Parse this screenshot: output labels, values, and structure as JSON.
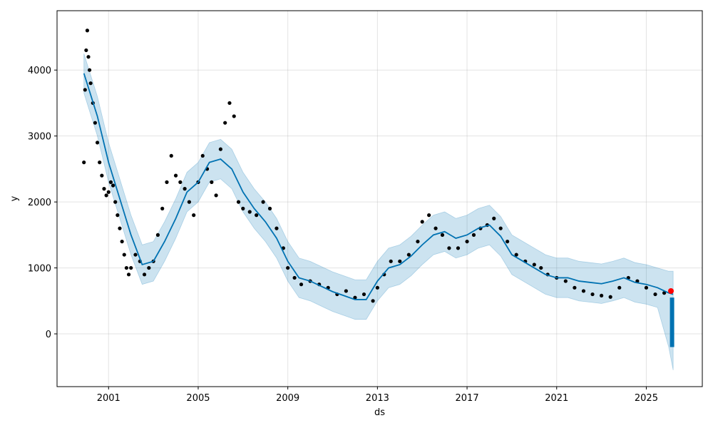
{
  "chart_data": {
    "type": "line",
    "xlabel": "ds",
    "ylabel": "y",
    "xlim": [
      1998.7,
      2027.5
    ],
    "ylim": [
      -800,
      4900
    ],
    "x_ticks": [
      2001,
      2005,
      2009,
      2013,
      2017,
      2021,
      2025
    ],
    "x_tick_labels": [
      "2001",
      "2005",
      "2009",
      "2013",
      "2017",
      "2021",
      "2025"
    ],
    "y_ticks": [
      0,
      1000,
      2000,
      3000,
      4000
    ],
    "y_tick_labels": [
      "0",
      "1000",
      "2000",
      "3000",
      "4000"
    ],
    "grid": true,
    "colors": {
      "observed": "#000000",
      "forecast": "#0072B2",
      "interval": "#0072B2",
      "recent": "#ff0000"
    },
    "series": [
      {
        "kind": "observed",
        "x": [
          1999.9,
          1999.95,
          2000.0,
          2000.05,
          2000.1,
          2000.15,
          2000.2,
          2000.3,
          2000.4,
          2000.5,
          2000.6,
          2000.7,
          2000.8,
          2000.9,
          2001.0,
          2001.1,
          2001.2,
          2001.3,
          2001.4,
          2001.5,
          2001.6,
          2001.7,
          2001.8,
          2001.9,
          2002.0,
          2002.2,
          2002.4,
          2002.6,
          2002.8,
          2003.0,
          2003.2,
          2003.4,
          2003.6,
          2003.8,
          2004.0,
          2004.2,
          2004.4,
          2004.6,
          2004.8,
          2005.0,
          2005.2,
          2005.4,
          2005.6,
          2005.8,
          2006.0,
          2006.2,
          2006.4,
          2006.6,
          2006.8,
          2007.0,
          2007.3,
          2007.6,
          2007.9,
          2008.2,
          2008.5,
          2008.8,
          2009.0,
          2009.3,
          2009.6,
          2010.0,
          2010.4,
          2010.8,
          2011.2,
          2011.6,
          2012.0,
          2012.4,
          2012.8,
          2013.0,
          2013.3,
          2013.6,
          2014.0,
          2014.4,
          2014.8,
          2015.0,
          2015.3,
          2015.6,
          2015.9,
          2016.2,
          2016.6,
          2017.0,
          2017.3,
          2017.6,
          2017.9,
          2018.2,
          2018.5,
          2018.8,
          2019.2,
          2019.6,
          2020.0,
          2020.3,
          2020.6,
          2021.0,
          2021.4,
          2021.8,
          2022.2,
          2022.6,
          2023.0,
          2023.4,
          2023.8,
          2024.2,
          2024.6,
          2025.0,
          2025.4,
          2025.8,
          2026.1
        ],
        "y": [
          2600,
          3700,
          4300,
          4600,
          4200,
          4000,
          3800,
          3500,
          3200,
          2900,
          2600,
          2400,
          2200,
          2100,
          2150,
          2300,
          2250,
          2000,
          1800,
          1600,
          1400,
          1200,
          1000,
          900,
          1000,
          1200,
          1100,
          900,
          1000,
          1100,
          1500,
          1900,
          2300,
          2700,
          2400,
          2300,
          2200,
          2000,
          1800,
          2300,
          2700,
          2500,
          2300,
          2100,
          2800,
          3200,
          3500,
          3300,
          2000,
          1900,
          1850,
          1800,
          2000,
          1900,
          1600,
          1300,
          1000,
          850,
          750,
          800,
          750,
          700,
          600,
          650,
          550,
          600,
          500,
          700,
          900,
          1100,
          1100,
          1200,
          1400,
          1700,
          1800,
          1600,
          1500,
          1300,
          1300,
          1400,
          1500,
          1600,
          1650,
          1750,
          1600,
          1400,
          1200,
          1100,
          1050,
          1000,
          900,
          850,
          800,
          700,
          650,
          600,
          580,
          560,
          700,
          850,
          800,
          700,
          600,
          620,
          650
        ]
      },
      {
        "kind": "forecast",
        "x": [
          1999.9,
          2000.5,
          2001.0,
          2001.5,
          2002.0,
          2002.5,
          2003.0,
          2003.5,
          2004.0,
          2004.5,
          2005.0,
          2005.5,
          2006.0,
          2006.5,
          2007.0,
          2007.5,
          2008.0,
          2008.5,
          2009.0,
          2009.5,
          2010.0,
          2010.5,
          2011.0,
          2011.5,
          2012.0,
          2012.5,
          2013.0,
          2013.5,
          2014.0,
          2014.5,
          2015.0,
          2015.5,
          2016.0,
          2016.5,
          2017.0,
          2017.5,
          2018.0,
          2018.5,
          2019.0,
          2019.5,
          2020.0,
          2020.5,
          2021.0,
          2021.5,
          2022.0,
          2022.5,
          2023.0,
          2023.5,
          2024.0,
          2024.5,
          2025.0,
          2025.5,
          2026.0,
          2026.2
        ],
        "y": [
          3950,
          3300,
          2600,
          2050,
          1500,
          1050,
          1100,
          1400,
          1750,
          2150,
          2300,
          2600,
          2650,
          2500,
          2150,
          1900,
          1700,
          1450,
          1100,
          850,
          800,
          720,
          640,
          580,
          520,
          520,
          800,
          1000,
          1050,
          1180,
          1350,
          1500,
          1550,
          1450,
          1500,
          1600,
          1650,
          1480,
          1200,
          1100,
          1000,
          900,
          850,
          850,
          800,
          780,
          760,
          800,
          850,
          780,
          750,
          700,
          620,
          600
        ]
      },
      {
        "kind": "interval",
        "x": [
          1999.9,
          2000.5,
          2001.0,
          2001.5,
          2002.0,
          2002.5,
          2003.0,
          2003.5,
          2004.0,
          2004.5,
          2005.0,
          2005.5,
          2006.0,
          2006.5,
          2007.0,
          2007.5,
          2008.0,
          2008.5,
          2009.0,
          2009.5,
          2010.0,
          2010.5,
          2011.0,
          2011.5,
          2012.0,
          2012.5,
          2013.0,
          2013.5,
          2014.0,
          2014.5,
          2015.0,
          2015.5,
          2016.0,
          2016.5,
          2017.0,
          2017.5,
          2018.0,
          2018.5,
          2019.0,
          2019.5,
          2020.0,
          2020.5,
          2021.0,
          2021.5,
          2022.0,
          2022.5,
          2023.0,
          2023.5,
          2024.0,
          2024.5,
          2025.0,
          2025.5,
          2026.0,
          2026.2
        ],
        "lower": [
          3650,
          3000,
          2300,
          1750,
          1200,
          750,
          800,
          1100,
          1450,
          1850,
          2000,
          2300,
          2350,
          2200,
          1850,
          1600,
          1400,
          1150,
          800,
          550,
          500,
          420,
          340,
          280,
          220,
          220,
          500,
          700,
          750,
          880,
          1050,
          1200,
          1250,
          1150,
          1200,
          1300,
          1350,
          1180,
          900,
          800,
          700,
          600,
          550,
          550,
          500,
          480,
          460,
          500,
          550,
          480,
          450,
          400,
          -200,
          -550
        ],
        "upper": [
          4250,
          3600,
          2900,
          2350,
          1800,
          1350,
          1400,
          1700,
          2050,
          2450,
          2600,
          2900,
          2950,
          2800,
          2450,
          2200,
          2000,
          1750,
          1400,
          1150,
          1100,
          1020,
          940,
          880,
          820,
          820,
          1100,
          1300,
          1350,
          1480,
          1650,
          1800,
          1850,
          1750,
          1800,
          1900,
          1950,
          1780,
          1500,
          1400,
          1300,
          1200,
          1150,
          1150,
          1100,
          1080,
          1060,
          1100,
          1150,
          1080,
          1050,
          1000,
          950,
          950
        ]
      },
      {
        "kind": "forecast-future",
        "x": [
          2026.15,
          2026.15,
          2026.2
        ],
        "y": [
          550,
          -200,
          650
        ]
      },
      {
        "kind": "recent",
        "x": [
          2026.1
        ],
        "y": [
          650
        ]
      }
    ]
  }
}
